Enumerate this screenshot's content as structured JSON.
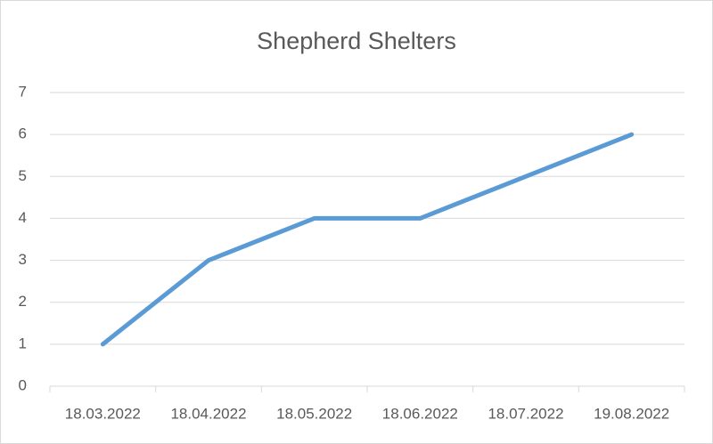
{
  "chart_data": {
    "type": "line",
    "title": "Shepherd Shelters",
    "categories": [
      "18.03.2022",
      "18.04.2022",
      "18.05.2022",
      "18.06.2022",
      "18.07.2022",
      "19.08.2022"
    ],
    "values": [
      1,
      3,
      4,
      4,
      5,
      6
    ],
    "color": "#5b9bd5",
    "ylim": [
      0,
      7
    ],
    "yticks": [
      0,
      1,
      2,
      3,
      4,
      5,
      6,
      7
    ],
    "grid": true
  }
}
